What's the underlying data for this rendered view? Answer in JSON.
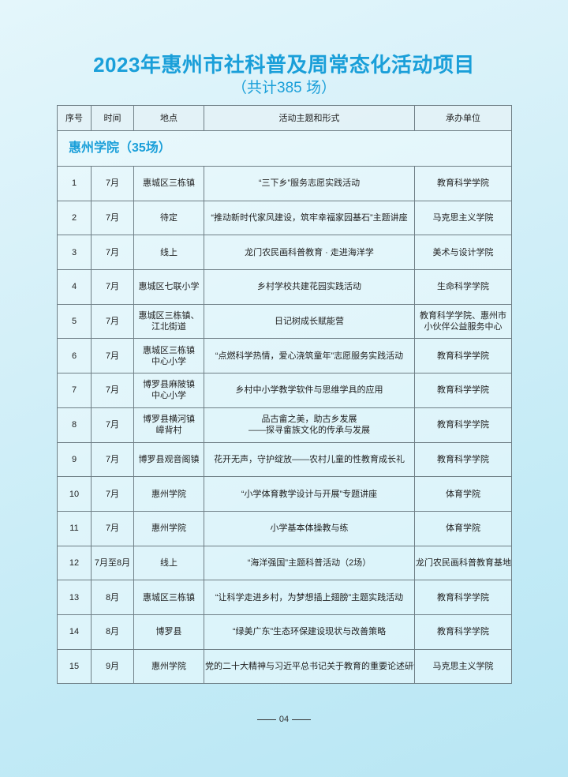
{
  "title": "2023年惠州市社科普及周常态化活动项目",
  "subtitle": "（共计385 场）",
  "table": {
    "headers": [
      "序号",
      "时间",
      "地点",
      "活动主题和形式",
      "承办单位"
    ],
    "section": "惠州学院（35场）",
    "rows": [
      [
        "1",
        "7月",
        "惠城区三栋镇",
        "“三下乡”服务志愿实践活动",
        "教育科学学院"
      ],
      [
        "2",
        "7月",
        "待定",
        "“推动新时代家风建设，筑牢幸福家园基石”主题讲座",
        "马克思主义学院"
      ],
      [
        "3",
        "7月",
        "线上",
        "龙门农民画科普教育 · 走进海洋学",
        "美术与设计学院"
      ],
      [
        "4",
        "7月",
        "惠城区七联小学",
        "乡村学校共建花园实践活动",
        "生命科学学院"
      ],
      [
        "5",
        "7月",
        "惠城区三栋镇、\n江北街道",
        "日记树成长赋能营",
        "教育科学学院、惠州市\n小伙伴公益服务中心"
      ],
      [
        "6",
        "7月",
        "惠城区三栋镇\n中心小学",
        "“点燃科学热情，爱心浇筑童年”志愿服务实践活动",
        "教育科学学院"
      ],
      [
        "7",
        "7月",
        "博罗县麻陂镇\n中心小学",
        "乡村中小学教学软件与思维学具的应用",
        "教育科学学院"
      ],
      [
        "8",
        "7月",
        "博罗县横河镇\n嶂背村",
        "品古畲之美，助古乡发展\n——探寻畲族文化的传承与发展",
        "教育科学学院"
      ],
      [
        "9",
        "7月",
        "博罗县观音阁镇",
        "花开无声，守护绽放——农村儿童的性教育成长礼",
        "教育科学学院"
      ],
      [
        "10",
        "7月",
        "惠州学院",
        "“小学体育教学设计与开展”专题讲座",
        "体育学院"
      ],
      [
        "11",
        "7月",
        "惠州学院",
        "小学基本体操教与练",
        "体育学院"
      ],
      [
        "12",
        "7月至8月",
        "线上",
        "“海洋强国”主题科普活动（2场）",
        "龙门农民画科普教育基地"
      ],
      [
        "13",
        "8月",
        "惠城区三栋镇",
        "“让科学走进乡村，为梦想插上翅膀”主题实践活动",
        "教育科学学院"
      ],
      [
        "14",
        "8月",
        "博罗县",
        "“绿美广东”生态环保建设现状与改善策略",
        "教育科学学院"
      ],
      [
        "15",
        "9月",
        "惠州学院",
        "党的二十大精神与习近平总书记关于教育的重要论述研讨",
        "马克思主义学院"
      ]
    ]
  },
  "footer": {
    "page": "04"
  },
  "colors": {
    "accent": "#1a9fd9"
  }
}
